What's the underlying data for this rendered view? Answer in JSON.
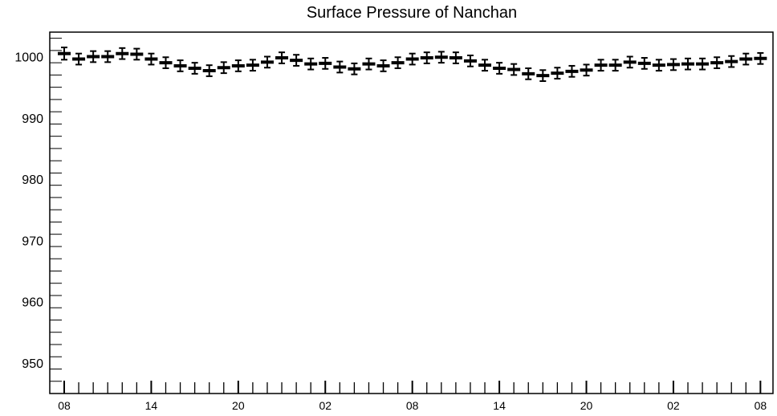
{
  "chart_data": {
    "type": "scatter",
    "title": "Surface Pressure of Nanchan",
    "xlabel": "",
    "ylabel": "",
    "ylim": [
      945,
      1004
    ],
    "yticks": [
      950,
      960,
      970,
      980,
      990,
      1000
    ],
    "x_tick_labels": [
      "08",
      "14",
      "20",
      "02",
      "08",
      "14",
      "20",
      "02",
      "08"
    ],
    "x_label_every_n_points": 6,
    "grid": false,
    "series": [
      {
        "values": [
          1000.5,
          999.6,
          1000.0,
          1000.0,
          1000.5,
          1000.4,
          999.6,
          999.0,
          998.5,
          998.1,
          997.7,
          998.2,
          998.5,
          998.6,
          999.1,
          999.8,
          999.4,
          998.8,
          998.9,
          998.3,
          998.0,
          998.8,
          998.5,
          999.0,
          999.6,
          999.8,
          999.9,
          999.8,
          999.3,
          998.6,
          998.1,
          997.9,
          997.2,
          996.9,
          997.3,
          997.6,
          997.8,
          998.6,
          998.6,
          999.1,
          998.9,
          998.6,
          998.7,
          998.8,
          998.8,
          999.0,
          999.2,
          999.6,
          999.7
        ],
        "errors": [
          1.0,
          0.9,
          0.9,
          0.9,
          0.9,
          0.9,
          0.9,
          0.9,
          0.9,
          0.9,
          0.9,
          0.9,
          0.9,
          0.9,
          0.9,
          0.9,
          0.9,
          0.9,
          0.9,
          0.9,
          0.9,
          0.9,
          0.9,
          0.9,
          0.9,
          0.9,
          0.9,
          0.9,
          0.9,
          0.9,
          0.9,
          0.9,
          0.9,
          0.9,
          0.9,
          0.9,
          0.9,
          0.9,
          0.9,
          0.9,
          0.9,
          0.9,
          0.9,
          0.9,
          0.9,
          0.9,
          0.9,
          0.9,
          0.9
        ]
      }
    ],
    "marker_color": "#000000"
  }
}
